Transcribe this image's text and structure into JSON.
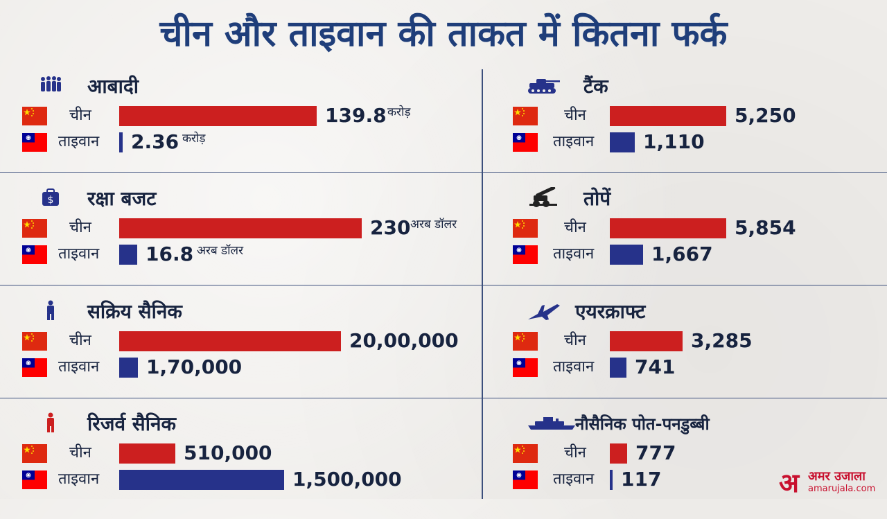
{
  "title": "चीन और ताइवान की ताकत में कितना फर्क",
  "colors": {
    "china": "#cc1f1f",
    "taiwan": "#26328a",
    "text": "#17233f",
    "title": "#1f3e7a"
  },
  "logo": {
    "mark": "अ",
    "name": "अमर उजाला",
    "url": "amarujala.com"
  },
  "chart_data": [
    {
      "type": "bar",
      "title": "आबादी",
      "icon": "population-icon",
      "categories": [
        "चीन",
        "ताइवान"
      ],
      "values": [
        139.8,
        2.36
      ],
      "labels": [
        "139.8",
        "2.36"
      ],
      "unit": "करोड़",
      "max": 139.8
    },
    {
      "type": "bar",
      "title": "रक्षा बजट",
      "icon": "budget-icon",
      "categories": [
        "चीन",
        "ताइवान"
      ],
      "values": [
        230,
        16.8
      ],
      "labels": [
        "230",
        "16.8"
      ],
      "unit": "अरब डॉलर",
      "max": 230
    },
    {
      "type": "bar",
      "title": "सक्रिय सैनिक",
      "icon": "soldier-icon",
      "categories": [
        "चीन",
        "ताइवान"
      ],
      "values": [
        2000000,
        170000
      ],
      "labels": [
        "20,00,000",
        "1,70,000"
      ],
      "unit": "",
      "max": 2000000
    },
    {
      "type": "bar",
      "title": "रिजर्व सैनिक",
      "icon": "reserve-soldier-icon",
      "categories": [
        "चीन",
        "ताइवान"
      ],
      "values": [
        510000,
        1500000
      ],
      "labels": [
        "510,000",
        "1,500,000"
      ],
      "unit": "",
      "max": 1500000
    },
    {
      "type": "bar",
      "title": "टैंक",
      "icon": "tank-icon",
      "categories": [
        "चीन",
        "ताइवान"
      ],
      "values": [
        5250,
        1110
      ],
      "labels": [
        "5,250",
        "1,110"
      ],
      "unit": "",
      "max": 5250
    },
    {
      "type": "bar",
      "title": "तोपें",
      "icon": "artillery-icon",
      "categories": [
        "चीन",
        "ताइवान"
      ],
      "values": [
        5854,
        1667
      ],
      "labels": [
        "5,854",
        "1,667"
      ],
      "unit": "",
      "max": 5854
    },
    {
      "type": "bar",
      "title": "एयरक्राफ्ट",
      "icon": "aircraft-icon",
      "categories": [
        "चीन",
        "ताइवान"
      ],
      "values": [
        3285,
        741
      ],
      "labels": [
        "3,285",
        "741"
      ],
      "unit": "",
      "max": 5250
    },
    {
      "type": "bar",
      "title": "नौसैनिक पोत-पनडुब्बी",
      "icon": "submarine-icon",
      "categories": [
        "चीन",
        "ताइवान"
      ],
      "values": [
        777,
        117
      ],
      "labels": [
        "777",
        "117"
      ],
      "unit": "",
      "max": 5250
    }
  ]
}
